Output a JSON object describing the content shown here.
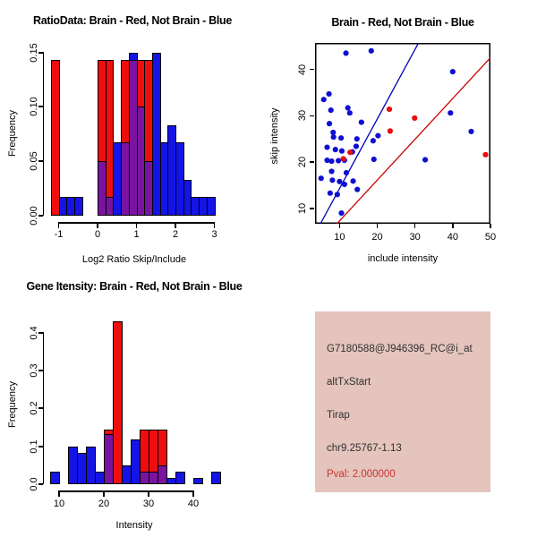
{
  "colors": {
    "red": "#EE0E0E",
    "blue": "#1414E6",
    "purple_overlap": "#7A14A0",
    "point_red": "#E60E0E",
    "point_blue": "#0F0FD2",
    "line_blue": "#0000B4",
    "line_red": "#C80000",
    "axis": "#000000",
    "info_bg": "#E4C4BC",
    "info_text": "#303030",
    "info_pval": "#CC3333",
    "background": "#FFFFFF"
  },
  "chart_data": [
    {
      "id": "ratio_histogram",
      "type": "bar",
      "title": "RatioData: Brain - Red, Not Brain - Blue",
      "xlabel": "Log2 Ratio Skip/Include",
      "ylabel": "Frequency",
      "xlim": [
        -1.3,
        3.05
      ],
      "ylim": [
        0,
        0.155
      ],
      "xticks": [
        -1,
        0,
        1,
        2,
        3
      ],
      "xtick_labels": [
        "-1",
        "0",
        "1",
        "2",
        "3"
      ],
      "yticks": [
        0,
        0.05,
        0.1,
        0.15
      ],
      "ytick_labels": [
        "0.00",
        "0.05",
        "0.10",
        "0.15"
      ],
      "bin_width": 0.2,
      "overlap_color_key": "purple_overlap",
      "series": [
        {
          "name": "Brain",
          "color_key": "red",
          "bins": [
            [
              -1.2,
              -1.0,
              0.143
            ],
            [
              0,
              0.2,
              0.143
            ],
            [
              0.2,
              0.4,
              0.143
            ],
            [
              0.6,
              0.8,
              0.143
            ],
            [
              0.8,
              1.0,
              0.143
            ],
            [
              1.0,
              1.2,
              0.143
            ],
            [
              1.2,
              1.4,
              0.143
            ]
          ]
        },
        {
          "name": "Not Brain",
          "color_key": "blue",
          "bins": [
            [
              -1.0,
              -0.8,
              0.017
            ],
            [
              -0.8,
              -0.6,
              0.017
            ],
            [
              -0.6,
              -0.4,
              0.017
            ],
            [
              0,
              0.2,
              0.05
            ],
            [
              0.2,
              0.4,
              0.017
            ],
            [
              0.4,
              0.6,
              0.067
            ],
            [
              0.6,
              0.8,
              0.067
            ],
            [
              0.8,
              1.0,
              0.15
            ],
            [
              1.0,
              1.2,
              0.1
            ],
            [
              1.2,
              1.4,
              0.05
            ],
            [
              1.4,
              1.6,
              0.15
            ],
            [
              1.6,
              1.8,
              0.067
            ],
            [
              1.8,
              2.0,
              0.083
            ],
            [
              2.0,
              2.2,
              0.067
            ],
            [
              2.2,
              2.4,
              0.033
            ],
            [
              2.4,
              2.6,
              0.017
            ],
            [
              2.6,
              2.8,
              0.017
            ],
            [
              2.8,
              3.0,
              0.017
            ]
          ]
        }
      ]
    },
    {
      "id": "intensity_scatter",
      "type": "scatter",
      "title": "Brain - Red, Not Brain - Blue",
      "xlabel": "include intensity",
      "ylabel": "skip intensity",
      "xlim": [
        3.5,
        50
      ],
      "ylim": [
        6.7,
        45.7
      ],
      "xticks": [
        10,
        20,
        30,
        40,
        50
      ],
      "xtick_labels": [
        "10",
        "20",
        "30",
        "40",
        "50"
      ],
      "yticks": [
        10,
        20,
        30,
        40
      ],
      "ytick_labels": [
        "10",
        "20",
        "30",
        "40"
      ],
      "series": [
        {
          "name": "Not Brain",
          "color_key": "point_blue",
          "points": [
            [
              11.7,
              43.5
            ],
            [
              18.4,
              44.0
            ],
            [
              40,
              39.5
            ],
            [
              5.8,
              33.5
            ],
            [
              7.2,
              34.7
            ],
            [
              7.7,
              31.2
            ],
            [
              12.2,
              31.7
            ],
            [
              12.7,
              30.6
            ],
            [
              7.3,
              28.3
            ],
            [
              15.8,
              28.6
            ],
            [
              8.3,
              26.4
            ],
            [
              20.2,
              25.7
            ],
            [
              18.9,
              24.6
            ],
            [
              8.4,
              25.4
            ],
            [
              10.4,
              25.2
            ],
            [
              14.6,
              25.0
            ],
            [
              6.7,
              23.2
            ],
            [
              8.9,
              22.7
            ],
            [
              10.6,
              22.4
            ],
            [
              13.4,
              22.2
            ],
            [
              14.4,
              23.4
            ],
            [
              6.7,
              20.4
            ],
            [
              7.9,
              20.2
            ],
            [
              9.7,
              20.3
            ],
            [
              11.3,
              20.4
            ],
            [
              19.1,
              20.6
            ],
            [
              7.9,
              18.0
            ],
            [
              5.1,
              16.5
            ],
            [
              11.8,
              17.7
            ],
            [
              8.1,
              16.1
            ],
            [
              10,
              15.8
            ],
            [
              11.3,
              15.2
            ],
            [
              13.6,
              15.9
            ],
            [
              14.7,
              14.1
            ],
            [
              7.5,
              13.3
            ],
            [
              9.4,
              13.0
            ],
            [
              10.5,
              9.0
            ],
            [
              32.7,
              20.5
            ],
            [
              44.9,
              26.6
            ],
            [
              39.4,
              30.6
            ]
          ]
        },
        {
          "name": "Brain",
          "color_key": "point_red",
          "points": [
            [
              23.2,
              31.4
            ],
            [
              29.9,
              29.5
            ],
            [
              23.4,
              26.7
            ],
            [
              12.8,
              22.1
            ],
            [
              11.0,
              20.7
            ],
            [
              48.7,
              21.6
            ]
          ]
        }
      ],
      "lines": [
        {
          "name": "not-brain-fit",
          "color_key": "line_blue",
          "slope": 1.5,
          "intercept": -0.7,
          "endpoints": [
            [
              4.93,
              6.7
            ],
            [
              30.93,
              45.7
            ]
          ]
        },
        {
          "name": "brain-fit",
          "color_key": "line_red",
          "slope": 0.88,
          "intercept": -1.48,
          "endpoints": [
            [
              9.3,
              6.7
            ],
            [
              50,
              42.52
            ]
          ]
        }
      ]
    },
    {
      "id": "gene_intensity_histogram",
      "type": "bar",
      "title": "Gene Itensity: Brain - Red, Not Brain - Blue",
      "xlabel": "Intensity",
      "ylabel": "Frequency",
      "xlim": [
        8,
        47
      ],
      "ylim": [
        0,
        0.44
      ],
      "xticks": [
        10,
        20,
        30,
        40
      ],
      "xtick_labels": [
        "10",
        "20",
        "30",
        "40"
      ],
      "yticks": [
        0,
        0.1,
        0.2,
        0.3,
        0.4
      ],
      "ytick_labels": [
        "0.0",
        "0.1",
        "0.2",
        "0.3",
        "0.4"
      ],
      "bin_width": 2,
      "overlap_color_key": "purple_overlap",
      "series": [
        {
          "name": "Brain",
          "color_key": "red",
          "bins": [
            [
              20,
              22,
              0.143
            ],
            [
              22,
              24,
              0.429
            ],
            [
              28,
              30,
              0.143
            ],
            [
              30,
              32,
              0.143
            ],
            [
              32,
              34,
              0.143
            ]
          ]
        },
        {
          "name": "Not Brain",
          "color_key": "blue",
          "bins": [
            [
              8,
              10,
              0.033
            ],
            [
              12,
              14,
              0.1
            ],
            [
              14,
              16,
              0.083
            ],
            [
              16,
              18,
              0.1
            ],
            [
              18,
              20,
              0.033
            ],
            [
              20,
              22,
              0.133
            ],
            [
              24,
              26,
              0.05
            ],
            [
              26,
              28,
              0.117
            ],
            [
              28,
              30,
              0.033
            ],
            [
              30,
              32,
              0.033
            ],
            [
              32,
              34,
              0.05
            ],
            [
              34,
              36,
              0.017
            ],
            [
              36,
              38,
              0.033
            ],
            [
              40,
              42,
              0.017
            ],
            [
              44,
              46,
              0.033
            ]
          ]
        }
      ]
    }
  ],
  "info_panel": {
    "probe_id": "G7180588@J946396_RC@i_at",
    "event_type": "altTxStart",
    "gene_symbol": "Tirap",
    "location": "chr9.25767-1.13",
    "pval_text": "Pval: 2.000000"
  }
}
